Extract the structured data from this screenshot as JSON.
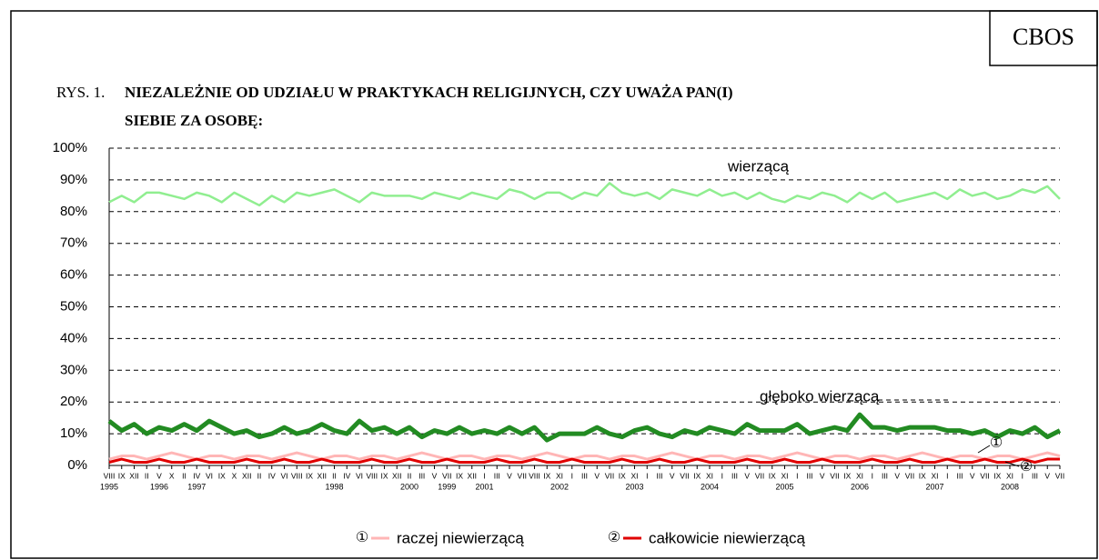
{
  "chart_data": {
    "type": "line",
    "badge": "CBOS",
    "title_prefix": "RYS. 1.",
    "title_lines": [
      "NIEZALEŻNIE OD  UDZIAŁU W PRAKTYKACH RELIGIJNYCH, CZY UWAŻA PAN(I)",
      "SIEBIE ZA OSOBĘ:"
    ],
    "categories": [
      "VIII",
      "IX",
      "XII",
      "II",
      "V",
      "X",
      "II",
      "IV",
      "VI",
      "IX",
      "X",
      "XII",
      "II",
      "IV",
      "VI",
      "VIII",
      "IX",
      "XII",
      "II",
      "IV",
      "VI",
      "VIII",
      "IX",
      "XII",
      "II",
      "III",
      "V",
      "VII",
      "IX",
      "XII",
      "I",
      "III",
      "V",
      "VII",
      "VIII",
      "IX",
      "XI",
      "I",
      "III",
      "V",
      "VII",
      "IX",
      "XI",
      "I",
      "III",
      "V",
      "VII",
      "IX",
      "XI",
      "I",
      "III",
      "V",
      "VII",
      "IX",
      "XI",
      "I",
      "III",
      "V",
      "VII",
      "IX",
      "XI",
      "I",
      "III",
      "V",
      "VII",
      "IX",
      "XI",
      "I",
      "III",
      "V",
      "VII",
      "IX",
      "XI",
      "I",
      "III",
      "V",
      "VII"
    ],
    "years": [
      "1995",
      null,
      null,
      null,
      "1996",
      null,
      null,
      "1997",
      null,
      null,
      null,
      null,
      null,
      null,
      null,
      null,
      null,
      null,
      "1998",
      null,
      null,
      null,
      null,
      null,
      "2000",
      null,
      null,
      "1999",
      null,
      null,
      "2001",
      null,
      null,
      null,
      null,
      null,
      "2002",
      null,
      null,
      null,
      null,
      null,
      "2003",
      null,
      null,
      null,
      null,
      null,
      "2004",
      null,
      null,
      null,
      null,
      null,
      "2005",
      null,
      null,
      null,
      null,
      null,
      "2006",
      null,
      null,
      null,
      null,
      null,
      "2007",
      null,
      null,
      null,
      null,
      null,
      "2008",
      null,
      null,
      null,
      null
    ],
    "series": [
      {
        "name": "wierzącą",
        "color": "#90ee90",
        "width": 2.5,
        "values": [
          83,
          85,
          83,
          86,
          86,
          85,
          84,
          86,
          85,
          83,
          86,
          84,
          82,
          85,
          83,
          86,
          85,
          86,
          87,
          85,
          83,
          86,
          85,
          85,
          85,
          84,
          86,
          85,
          84,
          86,
          85,
          84,
          87,
          86,
          84,
          86,
          86,
          84,
          86,
          85,
          89,
          86,
          85,
          86,
          84,
          87,
          86,
          85,
          87,
          85,
          86,
          84,
          86,
          84,
          83,
          85,
          84,
          86,
          85,
          83,
          86,
          84,
          86,
          83,
          84,
          85,
          86,
          84,
          87,
          85,
          86,
          84,
          85,
          87,
          86,
          88,
          84
        ]
      },
      {
        "name": "głęboko wierzącą",
        "color": "#228b22",
        "width": 5,
        "values": [
          14,
          11,
          13,
          10,
          12,
          11,
          13,
          11,
          14,
          12,
          10,
          11,
          9,
          10,
          12,
          10,
          11,
          13,
          11,
          10,
          14,
          11,
          12,
          10,
          12,
          9,
          11,
          10,
          12,
          10,
          11,
          10,
          12,
          10,
          12,
          8,
          10,
          10,
          10,
          12,
          10,
          9,
          11,
          12,
          10,
          9,
          11,
          10,
          12,
          11,
          10,
          13,
          11,
          11,
          11,
          13,
          10,
          11,
          12,
          11,
          16,
          12,
          12,
          11,
          12,
          12,
          12,
          11,
          11,
          10,
          11,
          9,
          11,
          10,
          12,
          9,
          11
        ]
      },
      {
        "name": "raczej niewierzącą",
        "symbol": "①",
        "color": "#ffb6b6",
        "width": 3,
        "values": [
          2,
          3,
          3,
          2,
          3,
          4,
          3,
          2,
          3,
          3,
          2,
          3,
          3,
          2,
          3,
          4,
          3,
          2,
          3,
          3,
          2,
          3,
          3,
          2,
          3,
          4,
          3,
          2,
          3,
          3,
          2,
          3,
          3,
          2,
          3,
          4,
          3,
          2,
          3,
          3,
          2,
          3,
          3,
          2,
          3,
          4,
          3,
          2,
          3,
          3,
          2,
          3,
          3,
          2,
          3,
          4,
          3,
          2,
          3,
          3,
          2,
          3,
          3,
          2,
          3,
          4,
          3,
          2,
          3,
          3,
          2,
          3,
          3,
          2,
          3,
          4,
          3
        ]
      },
      {
        "name": "całkowicie niewierzącą",
        "symbol": "②",
        "color": "#e00000",
        "width": 3,
        "values": [
          1,
          2,
          1,
          1,
          2,
          1,
          1,
          2,
          1,
          1,
          1,
          2,
          1,
          1,
          2,
          1,
          1,
          2,
          1,
          1,
          1,
          2,
          1,
          1,
          2,
          1,
          1,
          2,
          1,
          1,
          1,
          2,
          1,
          1,
          2,
          1,
          1,
          2,
          1,
          1,
          1,
          2,
          1,
          1,
          2,
          1,
          1,
          2,
          1,
          1,
          1,
          2,
          1,
          1,
          2,
          1,
          1,
          2,
          1,
          1,
          1,
          2,
          1,
          1,
          2,
          1,
          1,
          2,
          1,
          1,
          2,
          1,
          1,
          2,
          1,
          2,
          2
        ]
      }
    ],
    "ylim": [
      0,
      100
    ],
    "yticks": [
      {
        "value": 0,
        "label": "0%"
      },
      {
        "value": 10,
        "label": "10%"
      },
      {
        "value": 20,
        "label": "20%"
      },
      {
        "value": 30,
        "label": "30%"
      },
      {
        "value": 40,
        "label": "40%"
      },
      {
        "value": 50,
        "label": "50%"
      },
      {
        "value": 60,
        "label": "60%"
      },
      {
        "value": 70,
        "label": "70%"
      },
      {
        "value": 80,
        "label": "80%"
      },
      {
        "value": 90,
        "label": "90%"
      },
      {
        "value": 100,
        "label": "100%"
      }
    ],
    "grid": true
  }
}
